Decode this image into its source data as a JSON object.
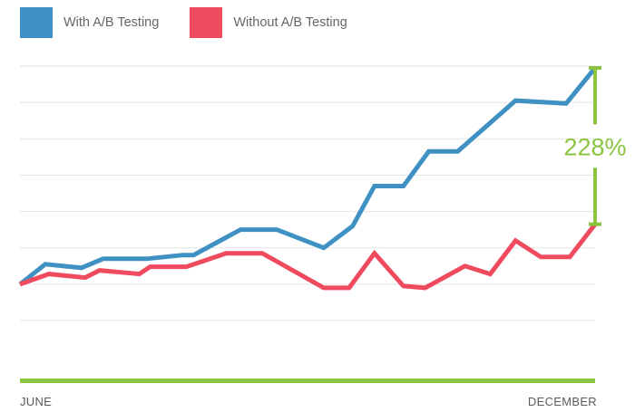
{
  "chart_data": {
    "type": "line",
    "title": "",
    "xlabel": "",
    "ylabel": "",
    "x_tick_labels": [
      "JUNE",
      "DECEMBER"
    ],
    "x": [
      0,
      1,
      2,
      3,
      4,
      5,
      6,
      7,
      8,
      9,
      10,
      11,
      12,
      13,
      14,
      15,
      16,
      17,
      18,
      19,
      20,
      21,
      22,
      23,
      24,
      25,
      26,
      27,
      28,
      29,
      30,
      31,
      32,
      33,
      34,
      35,
      36,
      37,
      38,
      39,
      40,
      41,
      42,
      43,
      44,
      45,
      46,
      47,
      48,
      49,
      50,
      51,
      52,
      53,
      54,
      55,
      56,
      57,
      58,
      59,
      60,
      61,
      62,
      63,
      64,
      65,
      66,
      67,
      68,
      69,
      70,
      71,
      72,
      73,
      74,
      75,
      76,
      77,
      78,
      79,
      80,
      81,
      82,
      83,
      84,
      85,
      86,
      87,
      88,
      89,
      90,
      91,
      92,
      93,
      94,
      95,
      96,
      97,
      98,
      99,
      100,
      101,
      102,
      103,
      104,
      105,
      106,
      107,
      108,
      109,
      110,
      111,
      112,
      113,
      114,
      115,
      116,
      117,
      118,
      119,
      120,
      121,
      122,
      123,
      124,
      125,
      126,
      127,
      128,
      129,
      130,
      131,
      132,
      133,
      134,
      135,
      136,
      137,
      138,
      139,
      140,
      141,
      142,
      143,
      144,
      145,
      146,
      147,
      148,
      149,
      150,
      151,
      152,
      153,
      154,
      155,
      156,
      157,
      158,
      159
    ],
    "x_range": [
      0,
      159
    ],
    "y_range": [
      0,
      7
    ],
    "gridlines": "horizontal",
    "legend_position": "top-left",
    "series": [
      {
        "name": "With A/B Testing",
        "color": "#3f91c4",
        "points": [
          [
            0,
            1.0
          ],
          [
            7,
            1.55
          ],
          [
            17,
            1.45
          ],
          [
            23,
            1.7
          ],
          [
            35,
            1.7
          ],
          [
            45,
            1.8
          ],
          [
            48,
            1.8
          ],
          [
            61,
            2.5
          ],
          [
            71,
            2.5
          ],
          [
            84,
            2.0
          ],
          [
            92,
            2.6
          ],
          [
            98,
            3.7
          ],
          [
            106,
            3.7
          ],
          [
            113,
            4.65
          ],
          [
            121,
            4.65
          ],
          [
            137,
            6.05
          ],
          [
            151,
            5.97
          ],
          [
            159,
            6.95
          ]
        ]
      },
      {
        "name": "Without A/B Testing",
        "color": "#ef4a5e",
        "points": [
          [
            0,
            1.0
          ],
          [
            8,
            1.28
          ],
          [
            18,
            1.18
          ],
          [
            22,
            1.38
          ],
          [
            33,
            1.28
          ],
          [
            36,
            1.48
          ],
          [
            46,
            1.48
          ],
          [
            57,
            1.85
          ],
          [
            67,
            1.85
          ],
          [
            84,
            0.9
          ],
          [
            91,
            0.9
          ],
          [
            98,
            1.85
          ],
          [
            106,
            0.95
          ],
          [
            112,
            0.9
          ],
          [
            123,
            1.5
          ],
          [
            130,
            1.28
          ],
          [
            137,
            2.2
          ],
          [
            144,
            1.75
          ],
          [
            152,
            1.75
          ],
          [
            159,
            2.65
          ]
        ]
      }
    ],
    "annotations": [
      {
        "text": "228%",
        "color": "#8bc43f",
        "type": "difference-bracket"
      }
    ],
    "baseline_color": "#8bc43f"
  }
}
